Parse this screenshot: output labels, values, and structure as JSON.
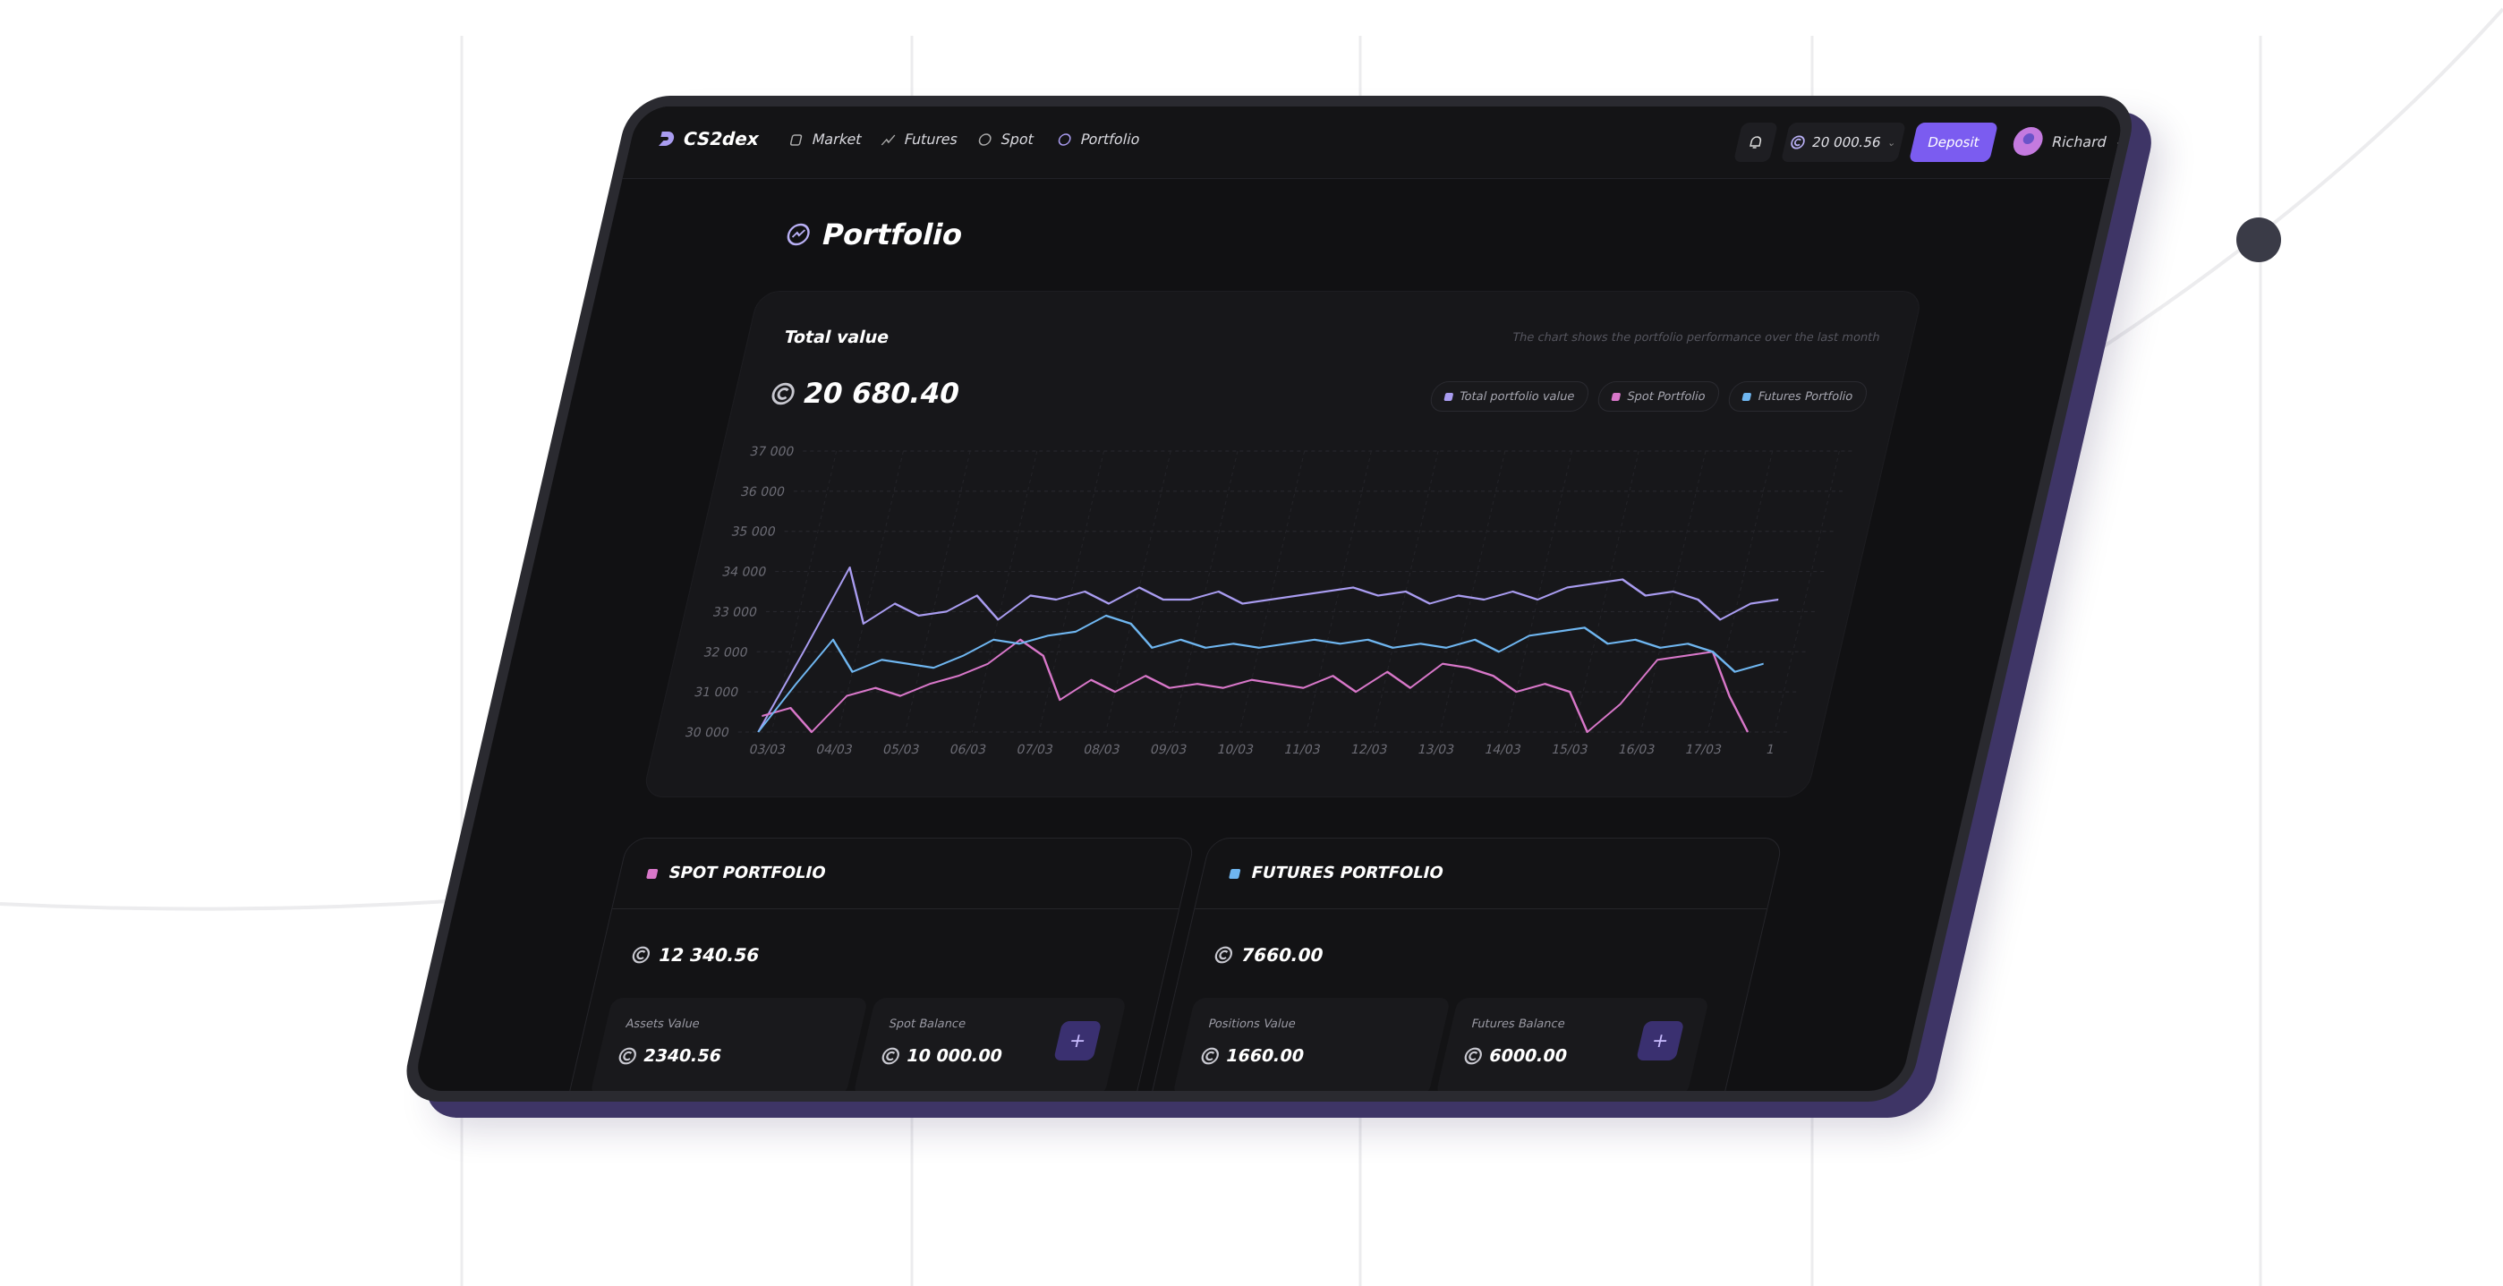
{
  "nav": {
    "logo": "CS2dex",
    "items": [
      "Market",
      "Futures",
      "Spot",
      "Portfolio"
    ],
    "balance": "20 000.56",
    "deposit": "Deposit",
    "user": "Richard"
  },
  "page_title": "Portfolio",
  "total_card": {
    "title": "Total value",
    "note": "The chart shows the portfolio performance over the last month",
    "amount": "20 680.40"
  },
  "chart_data": {
    "type": "line",
    "x": [
      2.8,
      3.2,
      3.6,
      4.0,
      4.4,
      4.8,
      5.2,
      5.6,
      6.0,
      6.4,
      6.8,
      7.2,
      7.6,
      8.0,
      8.4,
      8.8,
      9.2,
      9.6,
      10.0,
      10.4,
      10.8,
      11.2,
      11.6,
      12.0,
      12.4,
      12.8,
      13.2,
      13.6,
      14.0,
      14.4,
      14.8,
      15.2,
      15.6,
      16.0,
      16.4,
      16.8,
      17.2,
      17.6
    ],
    "xlim": [
      2.5,
      18.2
    ],
    "xticks": [
      {
        "value": 3,
        "label": "03/03"
      },
      {
        "value": 4,
        "label": "04/03"
      },
      {
        "value": 5,
        "label": "05/03"
      },
      {
        "value": 6,
        "label": "06/03"
      },
      {
        "value": 7,
        "label": "07/03"
      },
      {
        "value": 8,
        "label": "08/03"
      },
      {
        "value": 9,
        "label": "09/03"
      },
      {
        "value": 10,
        "label": "10/03"
      },
      {
        "value": 11,
        "label": "11/03"
      },
      {
        "value": 12,
        "label": "12/03"
      },
      {
        "value": 13,
        "label": "13/03"
      },
      {
        "value": 14,
        "label": "14/03"
      },
      {
        "value": 15,
        "label": "15/03"
      },
      {
        "value": 16,
        "label": "16/03"
      },
      {
        "value": 17,
        "label": "17/03"
      },
      {
        "value": 18,
        "label": "1"
      }
    ],
    "ylim": [
      30000,
      37000
    ],
    "yticks": [
      {
        "value": 30000,
        "label": "30 000"
      },
      {
        "value": 31000,
        "label": "31 000"
      },
      {
        "value": 32000,
        "label": "32 000"
      },
      {
        "value": 33000,
        "label": "33 000"
      },
      {
        "value": 34000,
        "label": "34 000"
      },
      {
        "value": 35000,
        "label": "35 000"
      },
      {
        "value": 36000,
        "label": "36 000"
      },
      {
        "value": 37000,
        "label": "37 000"
      }
    ],
    "grid": true,
    "series": [
      {
        "name": "Total portfolio value",
        "color": "#a99cf0",
        "values": [
          30000,
          32000,
          34100,
          32700,
          33200,
          32900,
          33000,
          33400,
          32800,
          33400,
          33300,
          33500,
          33200,
          33600,
          33300,
          33300,
          33500,
          33200,
          33300,
          33400,
          33500,
          33600,
          33400,
          33500,
          33200,
          33400,
          33300,
          33500,
          33300,
          33600,
          33700,
          33800,
          33400,
          33500,
          33300,
          32800,
          33200,
          33300
        ]
      },
      {
        "name": "Spot Portfolio",
        "color": "#d877c9",
        "values": [
          30400,
          30600,
          30000,
          30900,
          31100,
          30900,
          31200,
          31400,
          31700,
          32300,
          31900,
          30800,
          31300,
          31000,
          31400,
          31100,
          31200,
          31100,
          31300,
          31200,
          31100,
          31400,
          31000,
          31500,
          31100,
          31700,
          31600,
          31400,
          31000,
          31200,
          31000,
          30000,
          30700,
          31800,
          31900,
          32000,
          30900,
          30000
        ]
      },
      {
        "name": "Futures Portfolio",
        "color": "#6fb6f0",
        "values": [
          30000,
          31200,
          32300,
          31500,
          31800,
          31700,
          31600,
          31900,
          32300,
          32200,
          32400,
          32500,
          32900,
          32700,
          32100,
          32300,
          32100,
          32200,
          32100,
          32200,
          32300,
          32200,
          32300,
          32100,
          32200,
          32100,
          32300,
          32000,
          32400,
          32500,
          32600,
          32200,
          32300,
          32100,
          32200,
          32000,
          31500,
          31700
        ]
      }
    ]
  },
  "panels": [
    {
      "title": "SPOT PORTFOLIO",
      "color": "#d877c9",
      "amount": "12 340.56",
      "cards": [
        {
          "label": "Assets Value",
          "value": "2340.56"
        },
        {
          "label": "Spot Balance",
          "value": "10 000.00",
          "button": "+"
        }
      ]
    },
    {
      "title": "FUTURES PORTFOLIO",
      "color": "#6fb6f0",
      "amount": "7660.00",
      "cards": [
        {
          "label": "Positions Value",
          "value": "1660.00"
        },
        {
          "label": "Futures Balance",
          "value": "6000.00",
          "button": "+"
        }
      ]
    }
  ]
}
